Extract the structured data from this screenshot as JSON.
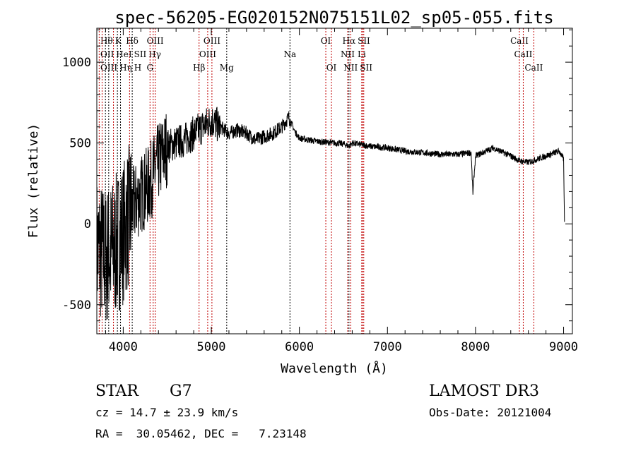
{
  "chart_data": {
    "type": "line",
    "title": "spec-56205-EG020152N075151L02_sp05-055.fits",
    "xlabel": "Wavelength (Å)",
    "ylabel": "Flux (relative)",
    "xlim": [
      3700,
      9100
    ],
    "ylim": [
      -680,
      1210
    ],
    "xticks": [
      4000,
      5000,
      6000,
      7000,
      8000,
      9000
    ],
    "yticks": [
      -500,
      0,
      500,
      1000
    ],
    "grid": false,
    "series": [
      {
        "name": "spectrum",
        "x": [
          3700,
          3800,
          3900,
          4000,
          4100,
          4200,
          4300,
          4400,
          4500,
          4600,
          4700,
          4800,
          4900,
          5000,
          5100,
          5200,
          5300,
          5400,
          5500,
          5600,
          5700,
          5800,
          5880,
          5950,
          6000,
          6200,
          6400,
          6500,
          6563,
          6600,
          6800,
          7000,
          7200,
          7400,
          7600,
          7800,
          7950,
          7970,
          8000,
          8200,
          8400,
          8500,
          8600,
          8800,
          8950,
          9000,
          9010
        ],
        "y": [
          -150,
          -200,
          -150,
          -50,
          100,
          180,
          250,
          380,
          480,
          500,
          520,
          560,
          600,
          640,
          600,
          560,
          580,
          560,
          520,
          540,
          560,
          600,
          660,
          570,
          530,
          510,
          500,
          495,
          480,
          500,
          480,
          470,
          450,
          440,
          430,
          430,
          440,
          190,
          420,
          470,
          420,
          390,
          380,
          420,
          450,
          400,
          0
        ]
      }
    ],
    "lines": [
      {
        "label": "Hθ",
        "wl": 3798,
        "row": 0,
        "color": "#000000"
      },
      {
        "label": "K",
        "wl": 3934,
        "row": 0,
        "color": "#000000"
      },
      {
        "label": "Hδ",
        "wl": 4102,
        "row": 0,
        "color": "#000000"
      },
      {
        "label": "OIII",
        "wl": 4363,
        "row": 0,
        "color": "#c00000"
      },
      {
        "label": "OIII",
        "wl": 5007,
        "row": 0,
        "color": "#c00000"
      },
      {
        "label": "OI",
        "wl": 6300,
        "row": 0,
        "color": "#c00000"
      },
      {
        "label": "Hα",
        "wl": 6563,
        "row": 0,
        "color": "#000000"
      },
      {
        "label": "SII",
        "wl": 6716,
        "row": 0,
        "color": "#c00000"
      },
      {
        "label": "CaII",
        "wl": 8498,
        "row": 0,
        "color": "#c00000"
      },
      {
        "label": "OII",
        "wl": 3727,
        "row": 1,
        "color": "#c00000"
      },
      {
        "label": "HeI",
        "wl": 3889,
        "row": 1,
        "color": "#c00000"
      },
      {
        "label": "SII",
        "wl": 4072,
        "row": 1,
        "color": "#c00000"
      },
      {
        "label": "Hγ",
        "wl": 4340,
        "row": 1,
        "color": "#c00000"
      },
      {
        "label": "OIII",
        "wl": 4959,
        "row": 1,
        "color": "#c00000"
      },
      {
        "label": "Na",
        "wl": 5893,
        "row": 1,
        "color": "#000000"
      },
      {
        "label": "NII",
        "wl": 6548,
        "row": 1,
        "color": "#c00000"
      },
      {
        "label": "Li",
        "wl": 6708,
        "row": 1,
        "color": "#c00000"
      },
      {
        "label": "CaII",
        "wl": 8542,
        "row": 1,
        "color": "#c00000"
      },
      {
        "label": "OIII",
        "wl": 3760,
        "row": 2,
        "color": "#c00000"
      },
      {
        "label": "Hη",
        "wl": 3835,
        "row": 2,
        "color": "#000000"
      },
      {
        "label": "H",
        "wl": 3969,
        "row": 2,
        "color": "#000000"
      },
      {
        "label": "G",
        "wl": 4304,
        "row": 2,
        "color": "#c00000"
      },
      {
        "label": "Hβ",
        "wl": 4861,
        "row": 2,
        "color": "#c00000"
      },
      {
        "label": "Mg",
        "wl": 5175,
        "row": 2,
        "color": "#000000"
      },
      {
        "label": "OI",
        "wl": 6364,
        "row": 2,
        "color": "#c00000"
      },
      {
        "label": "NII",
        "wl": 6583,
        "row": 2,
        "color": "#c00000"
      },
      {
        "label": "SII",
        "wl": 6731,
        "row": 2,
        "color": "#c00000"
      },
      {
        "label": "CaII",
        "wl": 8662,
        "row": 2,
        "color": "#c00000"
      }
    ]
  },
  "info": {
    "class": "STAR",
    "subclass": "G7",
    "survey": "LAMOST DR3",
    "cz": "cz = 14.7 ± 23.9 km/s",
    "obs_date": "Obs-Date: 20121004",
    "radec": "RA =  30.05462, DEC =   7.23148"
  }
}
